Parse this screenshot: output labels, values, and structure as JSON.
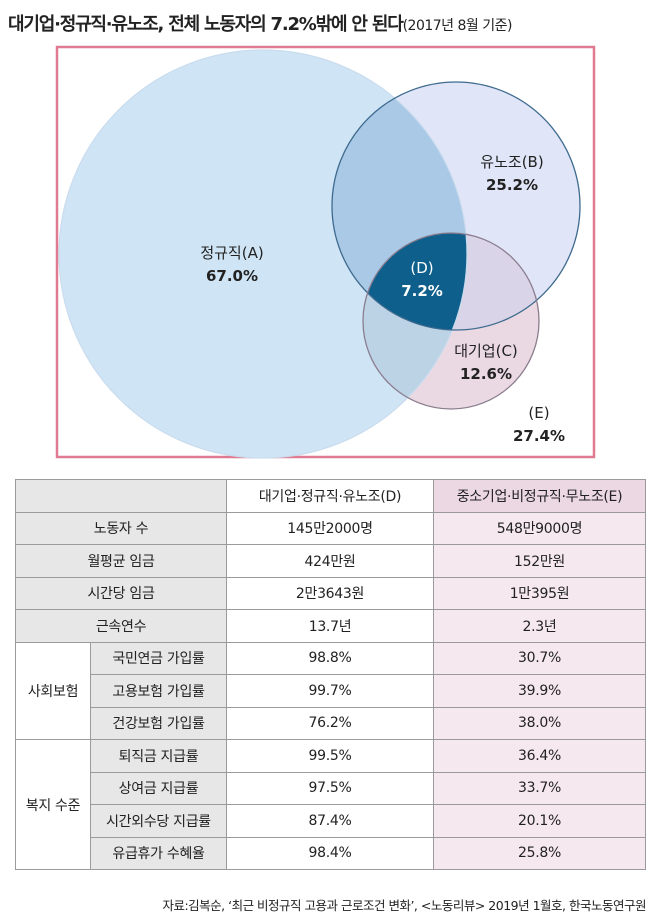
{
  "title": {
    "main": "대기업·정규직·유노조, 전체 노동자의 7.2%밖에 안 된다",
    "sub": "(2017년 8월 기준)"
  },
  "venn": {
    "regular": {
      "label": "정규직(A)",
      "value": "67.0%"
    },
    "union": {
      "label": "유노조(B)",
      "value": "25.2%"
    },
    "large": {
      "label": "대기업(C)",
      "value": "12.6%"
    },
    "intersection": {
      "label": "(D)",
      "value": "7.2%"
    },
    "outside": {
      "label": "(E)",
      "value": "27.4%"
    },
    "colors": {
      "frame": "#e07a90",
      "regular": "#cfe4f5",
      "union": "#e0e5f7",
      "large": "#ead9e3",
      "overlap_ab": "#a9c9e6",
      "intersection": "#0e5f8c"
    }
  },
  "table": {
    "headers": [
      "",
      "대기업·정규직·유노조(D)",
      "중소기업·비정규직·무노조(E)"
    ],
    "simple_rows": [
      {
        "label": "노동자 수",
        "d": "145만2000명",
        "e": "548만9000명"
      },
      {
        "label": "월평균 임금",
        "d": "424만원",
        "e": "152만원"
      },
      {
        "label": "시간당 임금",
        "d": "2만3643원",
        "e": "1만395원"
      },
      {
        "label": "근속연수",
        "d": "13.7년",
        "e": "2.3년"
      }
    ],
    "groups": [
      {
        "category": "사회보험",
        "rows": [
          {
            "label": "국민연금 가입률",
            "d": "98.8%",
            "e": "30.7%"
          },
          {
            "label": "고용보험 가입률",
            "d": "99.7%",
            "e": "39.9%"
          },
          {
            "label": "건강보험 가입률",
            "d": "76.2%",
            "e": "38.0%"
          }
        ]
      },
      {
        "category": "복지 수준",
        "rows": [
          {
            "label": "퇴직금 지급률",
            "d": "99.5%",
            "e": "36.4%"
          },
          {
            "label": "상여금 지급률",
            "d": "97.5%",
            "e": "33.7%"
          },
          {
            "label": "시간외수당 지급률",
            "d": "87.4%",
            "e": "20.1%"
          },
          {
            "label": "유급휴가 수혜율",
            "d": "98.4%",
            "e": "25.8%"
          }
        ]
      }
    ]
  },
  "source": "자료:김복순, ‘최근 비정규직 고용과 근로조건 변화’, <노동리뷰> 2019년 1월호, 한국노동연구원"
}
